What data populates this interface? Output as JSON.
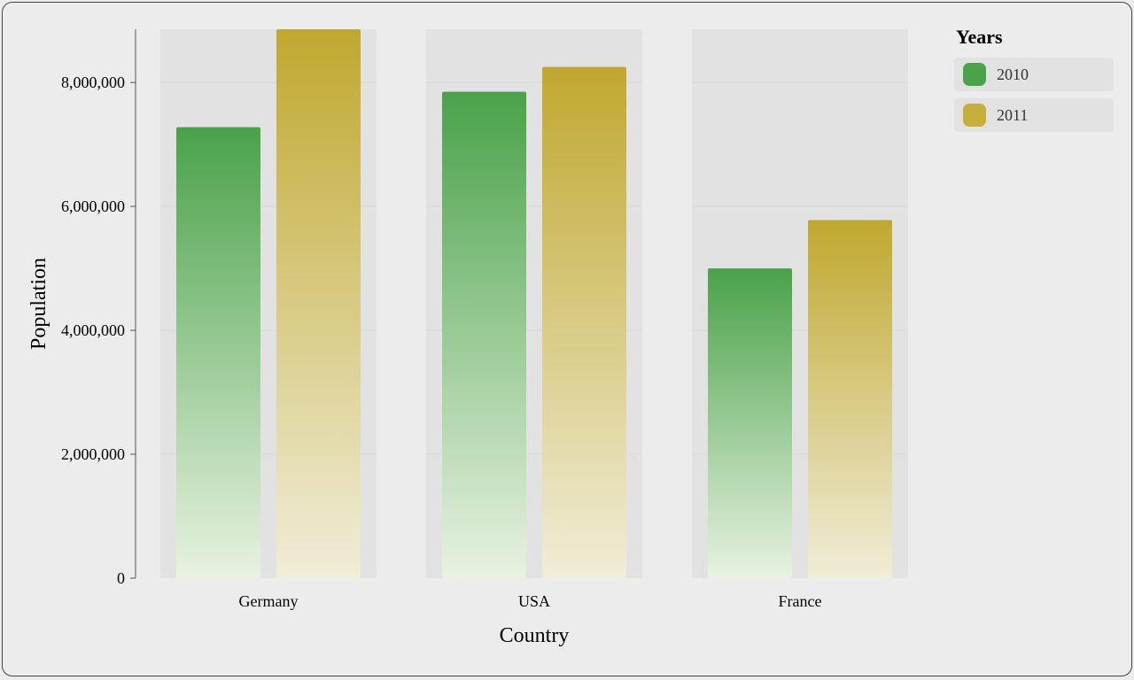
{
  "chart": {
    "type": "grouped-bar",
    "x_axis_title": "Country",
    "y_axis_title": "Population",
    "x_axis_title_fontsize": 24,
    "y_axis_title_fontsize": 24,
    "tick_fontsize": 18,
    "categories": [
      "Germany",
      "USA",
      "France"
    ],
    "series": [
      {
        "name": "2010",
        "color_top": "#4aa24a",
        "color_bottom": "#e8f2e1",
        "swatch_color": "#4aa24a",
        "values": [
          7280000,
          7850000,
          5000000
        ]
      },
      {
        "name": "2011",
        "color_top": "#c0a82f",
        "color_bottom": "#f0edd8",
        "swatch_color": "#c7b03a",
        "values": [
          8860000,
          8250000,
          5780000
        ]
      }
    ],
    "y_ticks": [
      0,
      2000000,
      4000000,
      6000000,
      8000000
    ],
    "y_min": 0,
    "y_max": 8860000,
    "group_band_color": "#e2e2e2",
    "gridline_color": "#d9d9d9",
    "axis_line_color": "#555555",
    "background_color": "#ececec",
    "plot_bar_width": 95,
    "plot_bar_gap_within_group": 18,
    "legend": {
      "title": "Years",
      "item_bg": "#e2e2e2"
    }
  }
}
